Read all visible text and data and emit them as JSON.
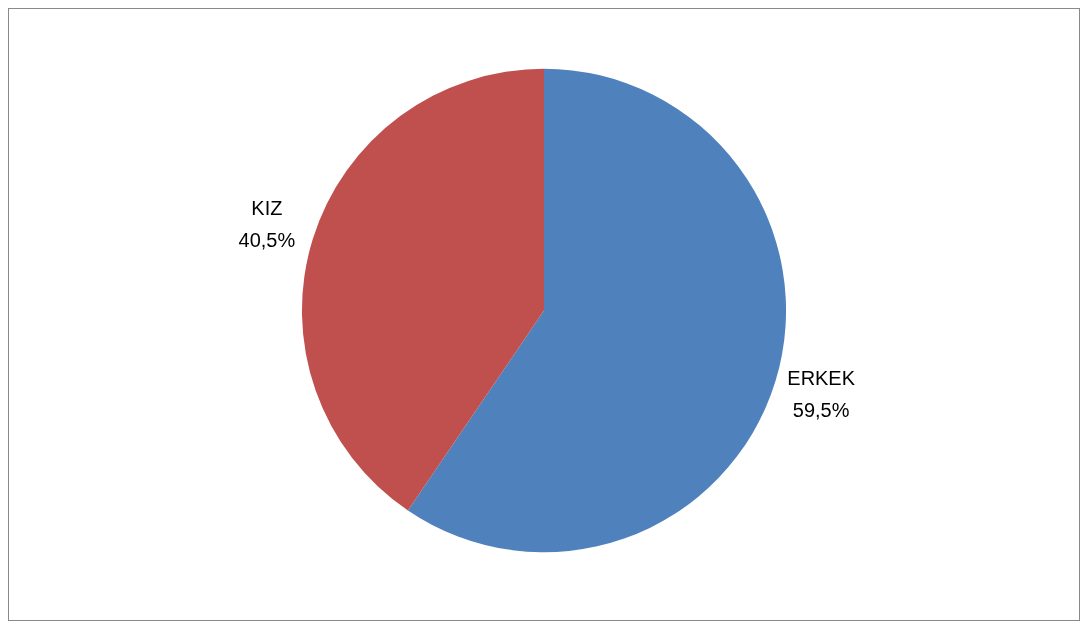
{
  "chart_data": {
    "type": "pie",
    "categories": [
      "ERKEK",
      "KIZ"
    ],
    "values": [
      59.5,
      40.5
    ],
    "colors": [
      "#4f81bd",
      "#c0504d"
    ],
    "value_labels": [
      "59,5%",
      "40,5%"
    ],
    "legend": false
  }
}
